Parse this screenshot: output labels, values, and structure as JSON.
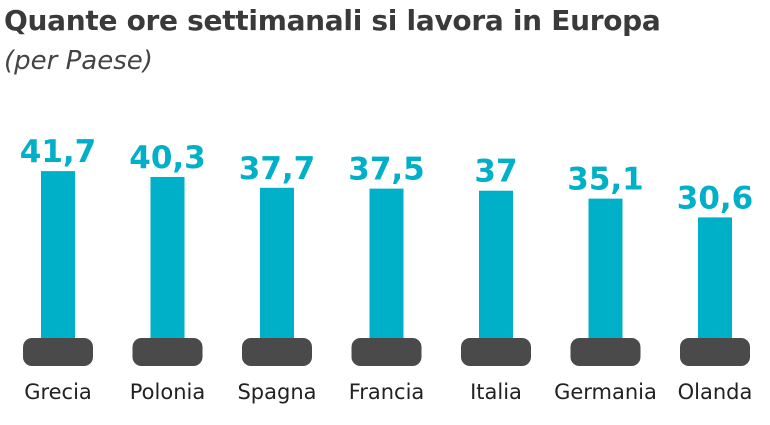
{
  "title": "Quante ore settimanali si lavora in Europa",
  "subtitle": "(per Paese)",
  "colors": {
    "bar": "#00afc8",
    "value_text": "#00afc8",
    "title": "#3a3a3a"
  },
  "chart_data": {
    "type": "bar",
    "title": "Quante ore settimanali si lavora in Europa",
    "subtitle": "(per Paese)",
    "categories": [
      "Grecia",
      "Polonia",
      "Spagna",
      "Francia",
      "Italia",
      "Germania",
      "Olanda"
    ],
    "values": [
      41.7,
      40.3,
      37.7,
      37.5,
      37,
      35.1,
      30.6
    ],
    "value_labels": [
      "41,7",
      "40,3",
      "37,7",
      "37,5",
      "37",
      "35,1",
      "30,6"
    ],
    "flags": [
      "greece-flag-icon",
      "poland-flag-icon",
      "spain-flag-icon",
      "france-flag-icon",
      "italy-flag-icon",
      "germany-flag-icon",
      "netherlands-flag-icon"
    ],
    "xlabel": "",
    "ylabel": "",
    "ylim": [
      0,
      45
    ],
    "grid": false,
    "legend": "none"
  }
}
